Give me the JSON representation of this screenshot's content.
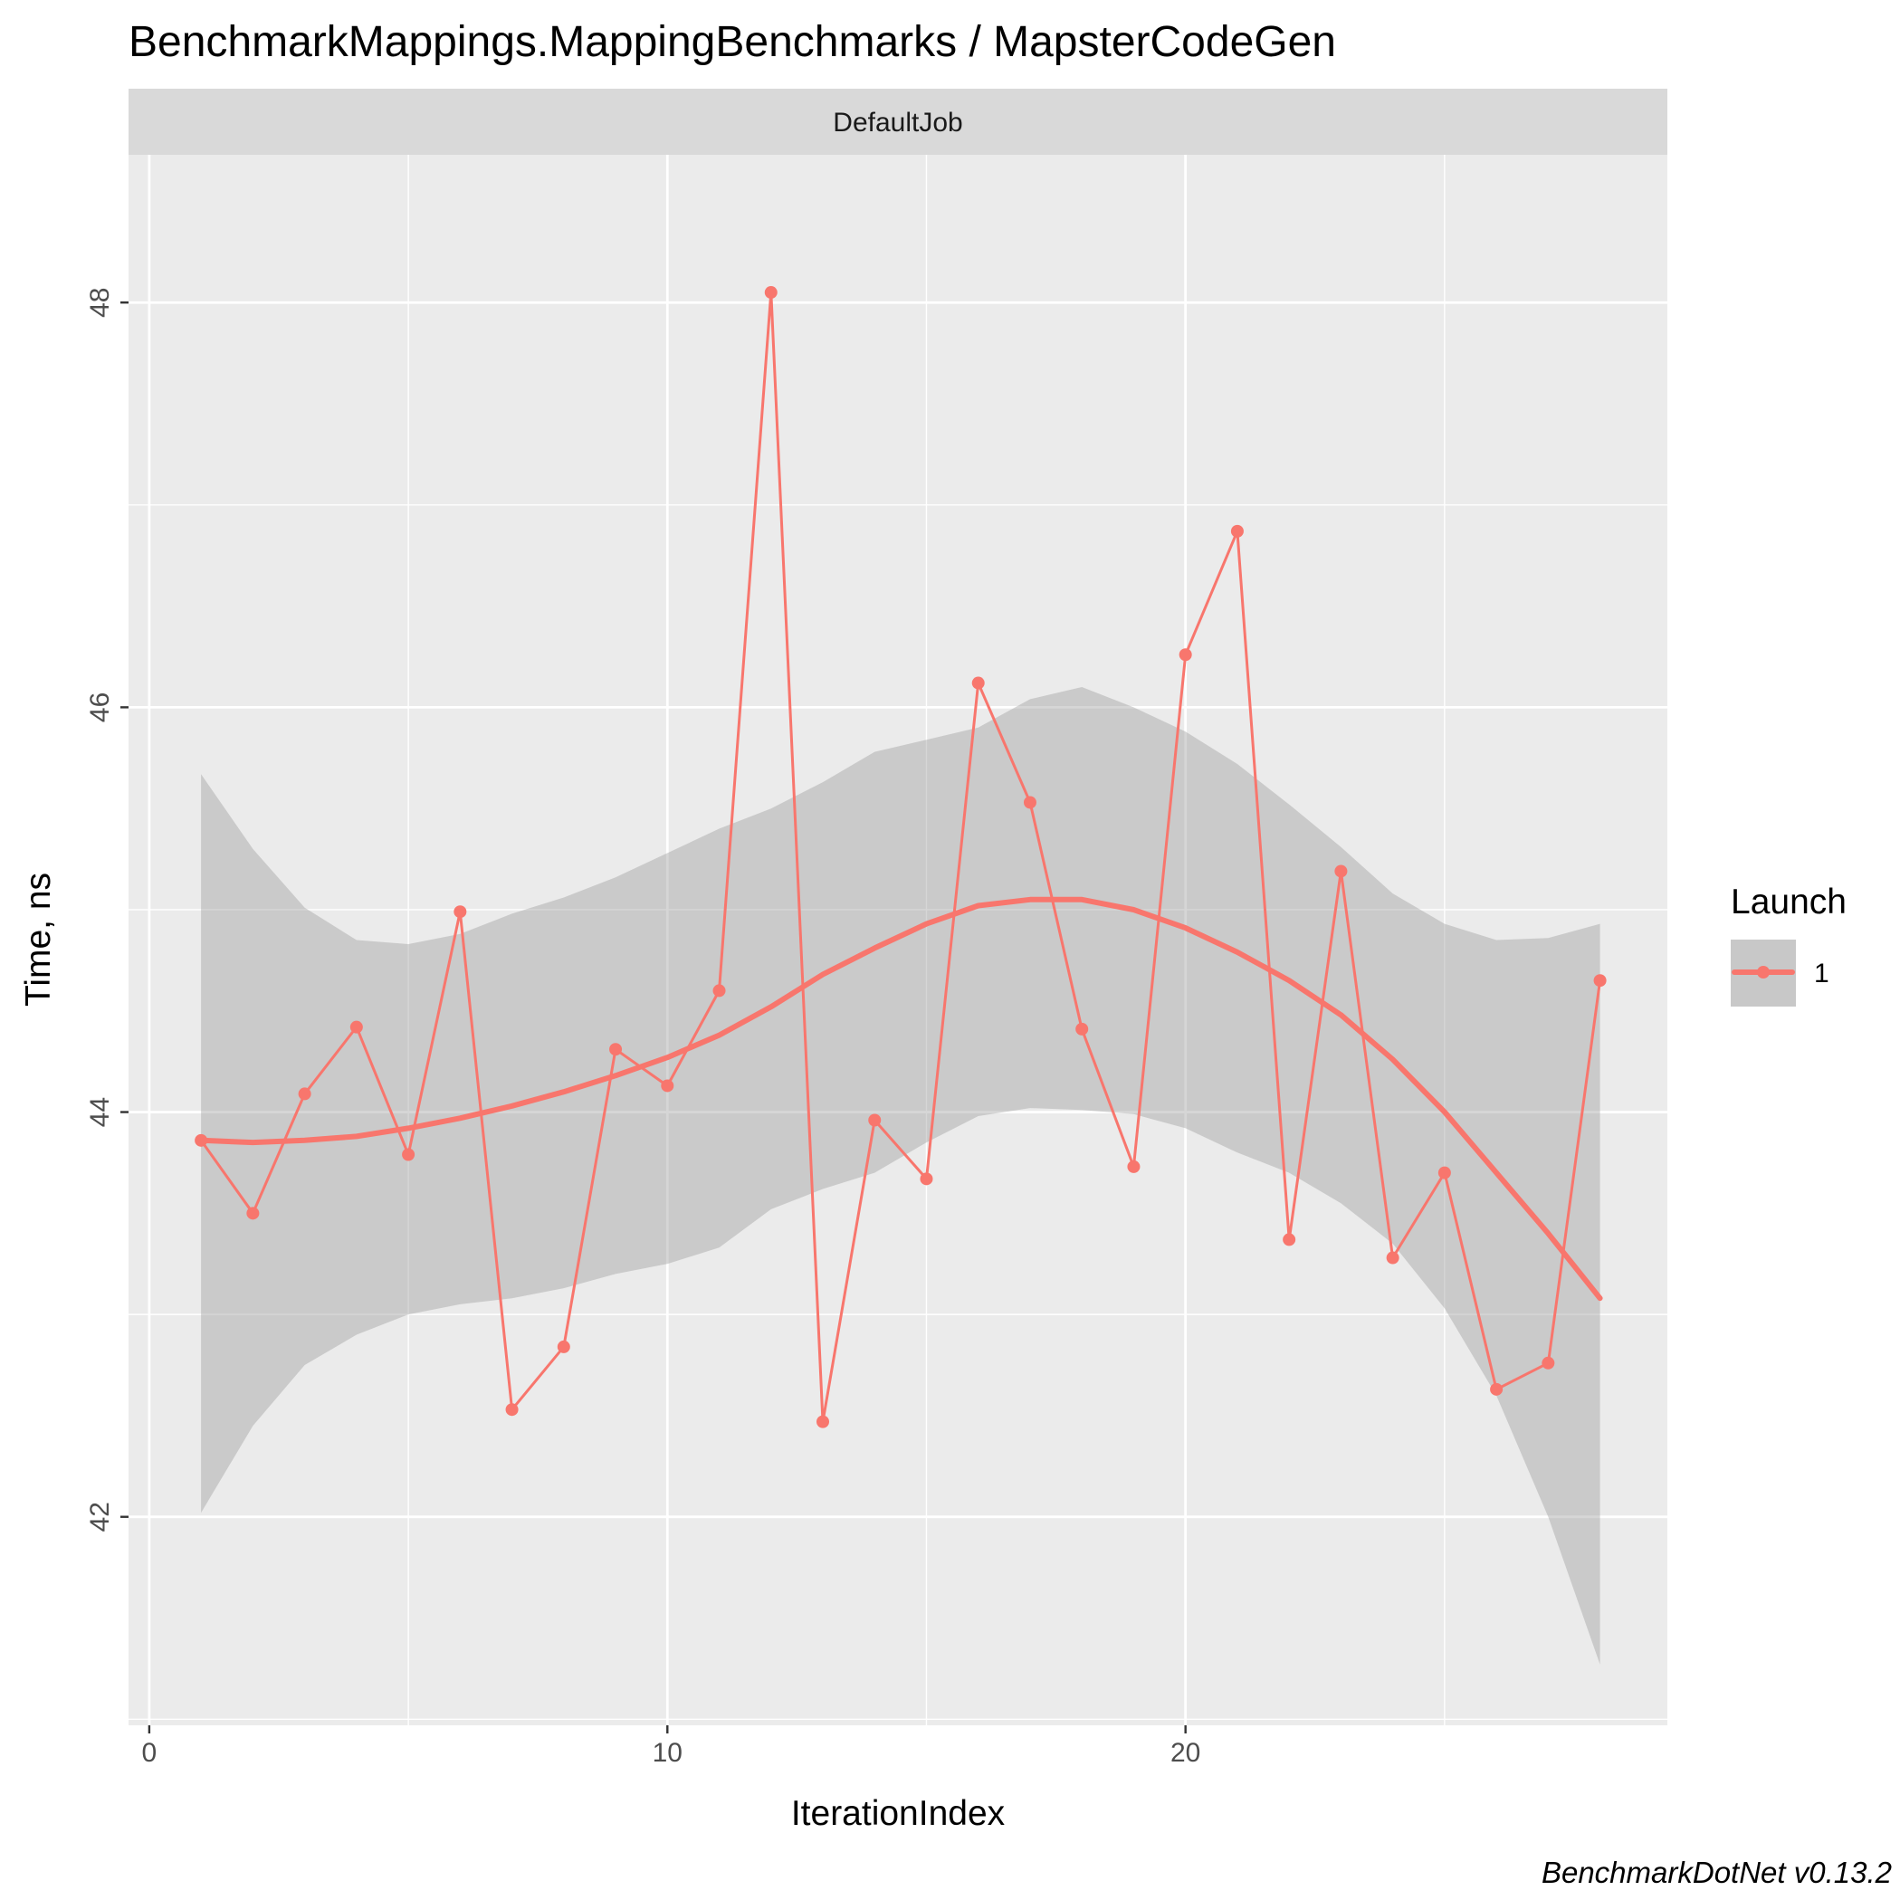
{
  "chart_data": {
    "type": "line",
    "title": "BenchmarkMappings.MappingBenchmarks / MapsterCodeGen",
    "facet": "DefaultJob",
    "xlabel": "IterationIndex",
    "ylabel": "Time, ns",
    "xlim": [
      -0.4,
      29.3
    ],
    "ylim": [
      40.97,
      48.73
    ],
    "x_ticks": [
      0,
      10,
      20
    ],
    "y_ticks": [
      42,
      44,
      46,
      48
    ],
    "grid": true,
    "legend": {
      "title": "Launch",
      "placement": "right",
      "entries": [
        "1"
      ]
    },
    "series": [
      {
        "name": "1",
        "color": "#F8766D",
        "x": [
          1,
          2,
          3,
          4,
          5,
          6,
          7,
          8,
          9,
          10,
          11,
          12,
          13,
          14,
          15,
          16,
          17,
          18,
          19,
          20,
          21,
          22,
          23,
          24,
          25,
          26,
          27,
          28
        ],
        "y": [
          43.86,
          43.5,
          44.09,
          44.42,
          43.79,
          44.99,
          42.53,
          42.84,
          44.31,
          44.13,
          44.6,
          48.05,
          42.47,
          43.96,
          43.67,
          46.12,
          45.53,
          44.41,
          43.73,
          46.26,
          46.87,
          43.37,
          45.19,
          43.28,
          43.7,
          42.63,
          42.76,
          44.65
        ]
      }
    ],
    "smooth": {
      "color": "#F8766D",
      "band_color": "#999999",
      "x": [
        1,
        2,
        3,
        4,
        5,
        6,
        7,
        8,
        9,
        10,
        11,
        12,
        13,
        14,
        15,
        16,
        17,
        18,
        19,
        20,
        21,
        22,
        23,
        24,
        25,
        26,
        27,
        28
      ],
      "y": [
        43.86,
        43.85,
        43.86,
        43.88,
        43.92,
        43.97,
        44.03,
        44.1,
        44.18,
        44.27,
        44.38,
        44.52,
        44.68,
        44.81,
        44.93,
        45.02,
        45.05,
        45.05,
        45.0,
        44.91,
        44.79,
        44.65,
        44.48,
        44.26,
        44.0,
        43.7,
        43.4,
        43.08
      ],
      "lower": [
        42.02,
        42.45,
        42.75,
        42.9,
        43.0,
        43.05,
        43.08,
        43.13,
        43.2,
        43.25,
        43.33,
        43.52,
        43.62,
        43.7,
        43.85,
        43.98,
        44.02,
        44.01,
        43.99,
        43.92,
        43.8,
        43.7,
        43.55,
        43.35,
        43.03,
        42.6,
        42.0,
        41.27
      ],
      "upper": [
        45.67,
        45.3,
        45.01,
        44.85,
        44.83,
        44.88,
        44.98,
        45.06,
        45.16,
        45.28,
        45.4,
        45.5,
        45.63,
        45.78,
        45.84,
        45.9,
        46.04,
        46.1,
        46.0,
        45.88,
        45.72,
        45.52,
        45.31,
        45.08,
        44.93,
        44.85,
        44.86,
        44.93
      ]
    }
  },
  "caption": "BenchmarkDotNet v0.13.2"
}
